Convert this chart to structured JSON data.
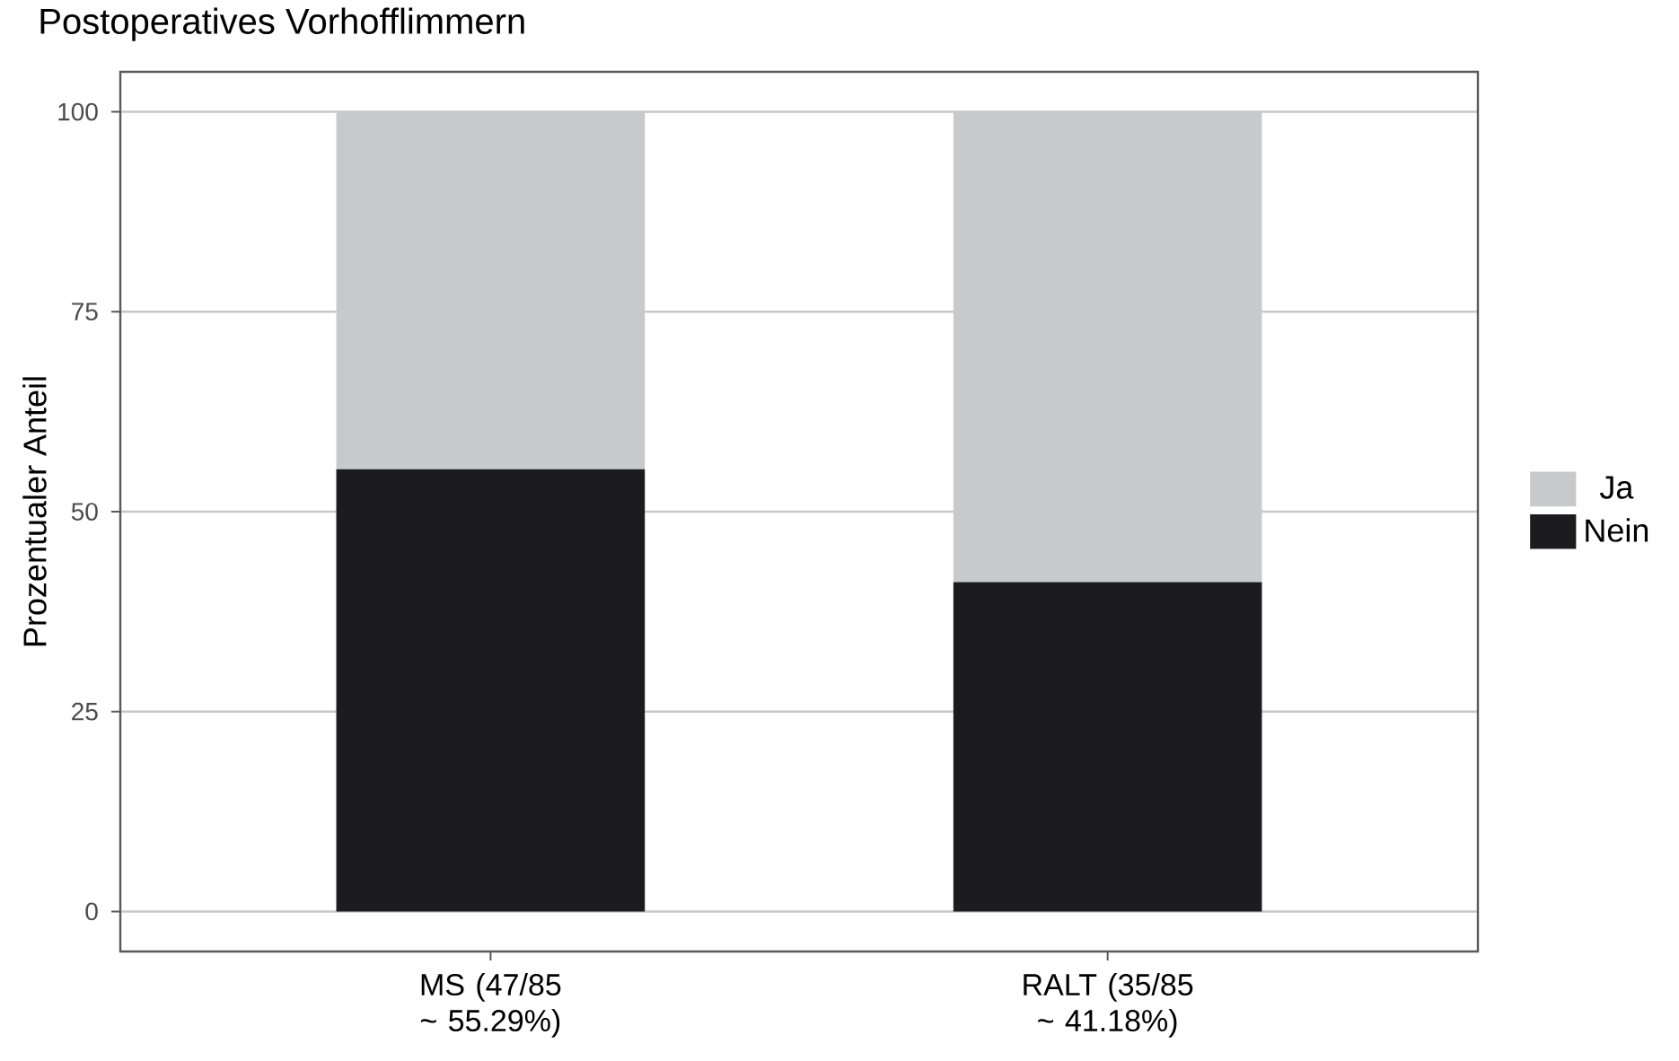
{
  "chart_data": {
    "type": "bar",
    "title": "Postoperatives Vorhofflimmern",
    "ylabel": "Prozentualer Anteil",
    "categories": [
      "MS (47/85 ~ 55.29%)",
      "RALT (35/85 ~ 41.18%)"
    ],
    "stacked": true,
    "series": [
      {
        "name": "Nein",
        "color": "#1c1c1e",
        "values": [
          55.29,
          41.18
        ]
      },
      {
        "name": "Ja",
        "color": "#c8c9cb",
        "values": [
          44.71,
          58.82
        ]
      }
    ],
    "ylim": [
      -5,
      105
    ],
    "yticks": [
      0,
      25,
      50,
      75,
      100
    ],
    "grid": "y",
    "legend": "right"
  }
}
